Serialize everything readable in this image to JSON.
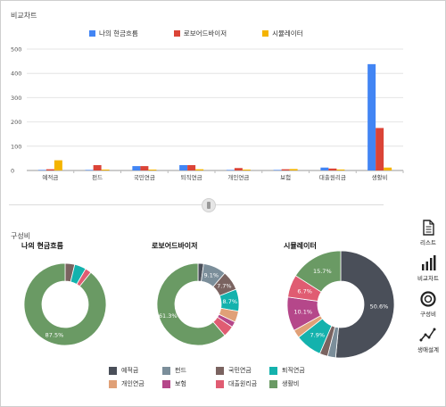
{
  "comparison_title": "비교차트",
  "composition_title": "구성비",
  "side_nav": {
    "list": "리스트",
    "compare": "비교차트",
    "composition": "구성비",
    "lifeplan": "생애설계"
  },
  "chart_data": [
    {
      "type": "bar",
      "title": "비교차트",
      "categories": [
        "예적금",
        "펀드",
        "국민연금",
        "퇴직연금",
        "개인연금",
        "보험",
        "대출원리금",
        "생활비"
      ],
      "ylim": [
        0,
        500
      ],
      "yticks": [
        0,
        100,
        200,
        300,
        400,
        500
      ],
      "grid": true,
      "legend": "top-center",
      "series": [
        {
          "name": "나의 현금흐름",
          "color": "#4285f4",
          "values": [
            0,
            0,
            18,
            22,
            0,
            0,
            12,
            438
          ]
        },
        {
          "name": "로보어드바이저",
          "color": "#db4437",
          "values": [
            5,
            22,
            18,
            22,
            10,
            5,
            8,
            175
          ]
        },
        {
          "name": "시뮬레이터",
          "color": "#f4b400",
          "values": [
            42,
            3,
            2,
            5,
            2,
            6,
            4,
            12
          ]
        }
      ]
    },
    {
      "type": "pie",
      "title": "나의 현금흐름",
      "labels": [
        "예적금",
        "펀드",
        "국민연금",
        "퇴직연금",
        "개인연금",
        "보험",
        "대출원리금",
        "생활비"
      ],
      "values": [
        0,
        0,
        3.7,
        4.5,
        0,
        0,
        2.4,
        87.5
      ],
      "data_labels": {
        "생활비": "87.5%"
      }
    },
    {
      "type": "pie",
      "title": "로보어드바이저",
      "labels": [
        "예적금",
        "펀드",
        "국민연금",
        "퇴직연금",
        "개인연금",
        "보험",
        "대출원리금",
        "생활비"
      ],
      "values": [
        2.2,
        9.1,
        7.7,
        8.7,
        4.4,
        2.2,
        4.4,
        61.3
      ],
      "data_labels": {
        "펀드": "9.1%",
        "국민연금": "7.7%",
        "퇴직연금": "8.7%",
        "생활비": "61.3%"
      }
    },
    {
      "type": "pie",
      "title": "시뮬레이터",
      "labels": [
        "예적금",
        "펀드",
        "국민연금",
        "퇴직연금",
        "개인연금",
        "보험",
        "대출원리금",
        "생활비"
      ],
      "values": [
        50.6,
        2.4,
        2.4,
        7.9,
        2.4,
        10.1,
        6.7,
        15.7
      ],
      "data_labels": {
        "예적금": "50.6%",
        "퇴직연금": "7.9%",
        "보험": "10.1%",
        "대출원리금": "6.7%",
        "생활비": "15.7%"
      }
    }
  ],
  "pie_legend": [
    {
      "label": "예적금",
      "color": "#4a4f59"
    },
    {
      "label": "펀드",
      "color": "#7b8e9a"
    },
    {
      "label": "국민연금",
      "color": "#7a6360"
    },
    {
      "label": "퇴직연금",
      "color": "#14b2ad"
    },
    {
      "label": "개인연금",
      "color": "#e0a077"
    },
    {
      "label": "보험",
      "color": "#b5478a"
    },
    {
      "label": "대출원리금",
      "color": "#e05c72"
    },
    {
      "label": "생활비",
      "color": "#6a9a64"
    }
  ]
}
